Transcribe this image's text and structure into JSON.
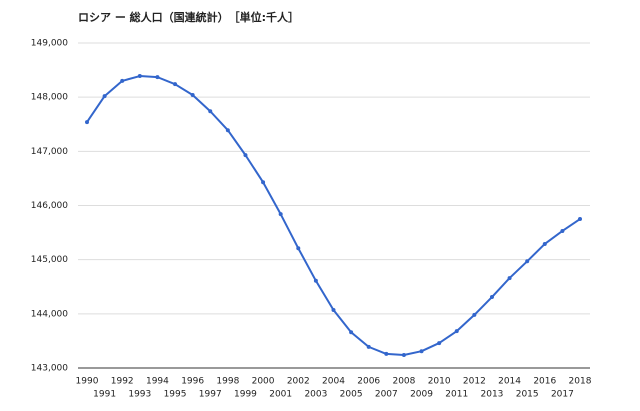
{
  "chart_data": {
    "type": "line",
    "title": "ロシア ー 総人口（国連統計）　［単位:千人］",
    "x": [
      1990,
      1991,
      1992,
      1993,
      1994,
      1995,
      1996,
      1997,
      1998,
      1999,
      2000,
      2001,
      2002,
      2003,
      2004,
      2005,
      2006,
      2007,
      2008,
      2009,
      2010,
      2011,
      2012,
      2013,
      2014,
      2015,
      2016,
      2017,
      2018
    ],
    "series": [
      {
        "color": "#3366cc",
        "values": [
          147540,
          148020,
          148300,
          148390,
          148370,
          148240,
          148040,
          147740,
          147390,
          146930,
          146430,
          145840,
          145210,
          144610,
          144070,
          143660,
          143390,
          143260,
          143240,
          143310,
          143460,
          143680,
          143980,
          144310,
          144660,
          144970,
          145290,
          145530,
          145750
        ]
      }
    ],
    "xlim": [
      1990,
      2018
    ],
    "ylim": [
      143000,
      149000
    ],
    "yticks": [
      {
        "value": 143000,
        "label": "143,000"
      },
      {
        "value": 144000,
        "label": "144,000"
      },
      {
        "value": 145000,
        "label": "145,000"
      },
      {
        "value": 146000,
        "label": "146,000"
      },
      {
        "value": 147000,
        "label": "147,000"
      },
      {
        "value": 148000,
        "label": "148,000"
      },
      {
        "value": 149000,
        "label": "149,000"
      }
    ],
    "grid": true
  }
}
